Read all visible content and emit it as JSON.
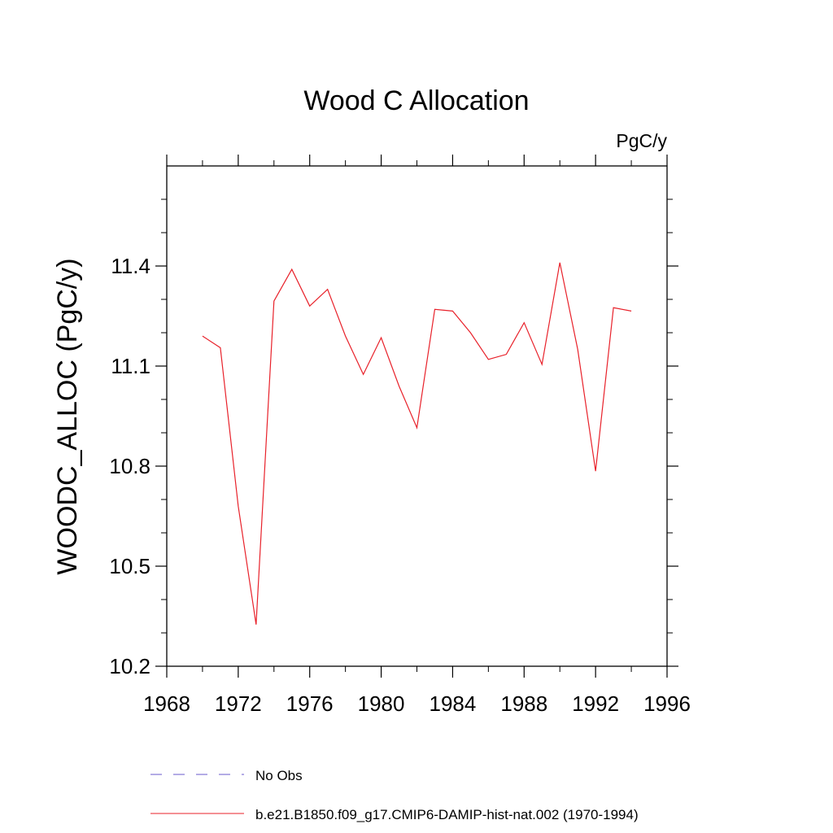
{
  "chart_data": {
    "type": "line",
    "title": "Wood C Allocation",
    "units": "PgC/y",
    "ylabel": "WOODC_ALLOC  (PgC/y)",
    "xlabel": "",
    "xlim": [
      1968,
      1996
    ],
    "ylim": [
      10.2,
      11.7
    ],
    "x_ticks": [
      1968,
      1972,
      1976,
      1980,
      1984,
      1988,
      1992,
      1996
    ],
    "x_tick_labels": [
      "1968",
      "1972",
      "1976",
      "1980",
      "1984",
      "1988",
      "1992",
      "1996"
    ],
    "y_ticks": [
      10.2,
      10.5,
      10.8,
      11.1,
      11.4
    ],
    "y_tick_labels": [
      "10.2",
      "10.5",
      "10.8",
      "11.1",
      "11.4"
    ],
    "y_minor_step": 0.1,
    "x_minor_step": 2,
    "grid": false,
    "legend_position": "bottom",
    "series": [
      {
        "name": "No Obs",
        "color": "#6a5acd",
        "dash": "dashed",
        "x": [],
        "values": []
      },
      {
        "name": "b.e21.B1850.f09_g17.CMIP6-DAMIP-hist-nat.002 (1970-1994)",
        "color": "#e8212a",
        "dash": "solid",
        "x": [
          1970,
          1971,
          1972,
          1973,
          1974,
          1975,
          1976,
          1977,
          1978,
          1979,
          1980,
          1981,
          1982,
          1983,
          1984,
          1985,
          1986,
          1987,
          1988,
          1989,
          1990,
          1991,
          1992,
          1993,
          1994
        ],
        "values": [
          11.19,
          11.155,
          10.68,
          10.325,
          11.295,
          11.39,
          11.28,
          11.33,
          11.19,
          11.075,
          11.185,
          11.04,
          10.915,
          11.27,
          11.265,
          11.2,
          11.12,
          11.135,
          11.23,
          11.105,
          11.41,
          11.15,
          10.785,
          11.275,
          11.265
        ]
      }
    ]
  }
}
